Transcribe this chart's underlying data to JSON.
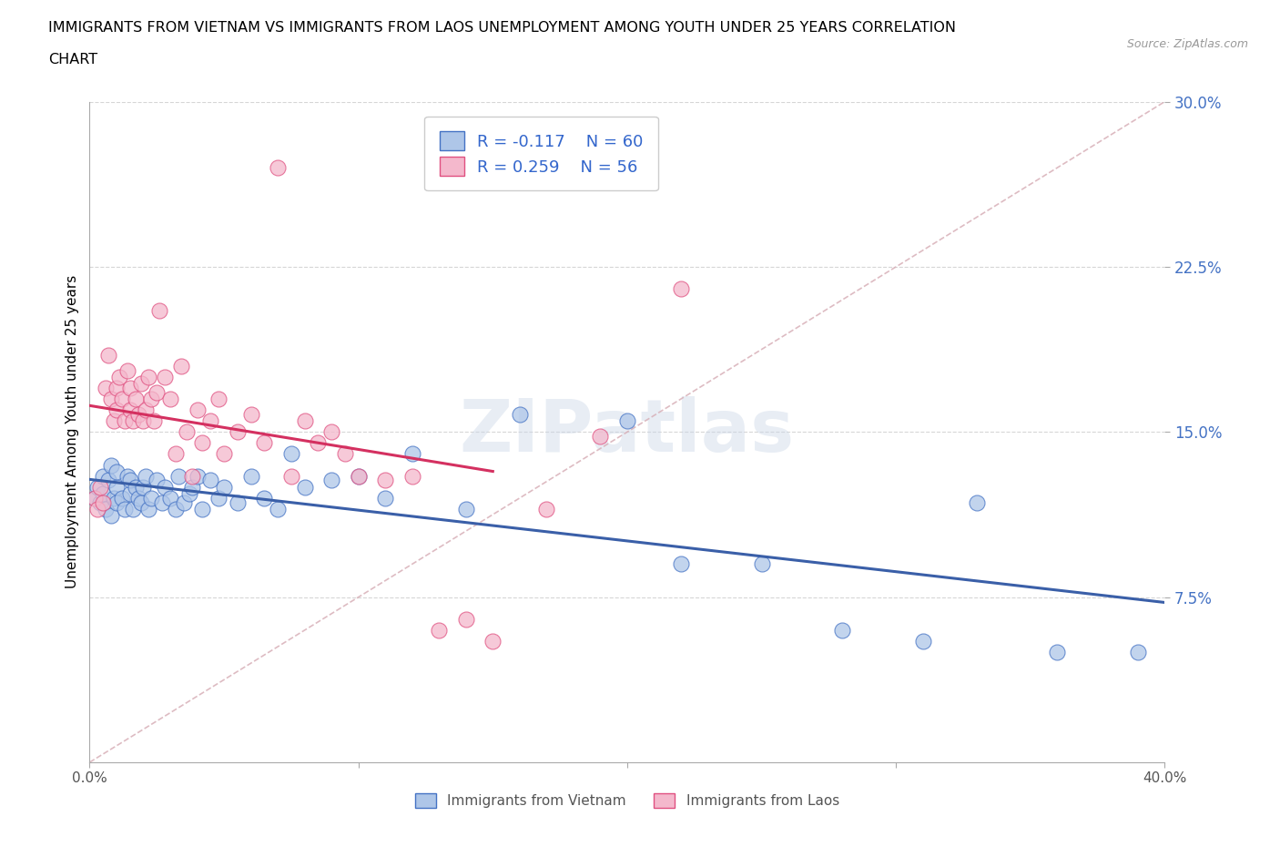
{
  "title_line1": "IMMIGRANTS FROM VIETNAM VS IMMIGRANTS FROM LAOS UNEMPLOYMENT AMONG YOUTH UNDER 25 YEARS CORRELATION",
  "title_line2": "CHART",
  "source": "Source: ZipAtlas.com",
  "ylabel": "Unemployment Among Youth under 25 years",
  "xlim": [
    0,
    0.4
  ],
  "ylim": [
    0,
    0.3
  ],
  "ytick_vals": [
    0.075,
    0.15,
    0.225,
    0.3
  ],
  "ytick_labels": [
    "7.5%",
    "15.0%",
    "22.5%",
    "30.0%"
  ],
  "xtick_vals": [
    0.0,
    0.1,
    0.2,
    0.3,
    0.4
  ],
  "xtick_labels": [
    "0.0%",
    "",
    "",
    "",
    "40.0%"
  ],
  "legend_r1": "R = -0.117",
  "legend_n1": "N = 60",
  "legend_r2": "R = 0.259",
  "legend_n2": "N = 56",
  "color_vietnam_fill": "#aec6e8",
  "color_vietnam_edge": "#4472c4",
  "color_laos_fill": "#f4b8cc",
  "color_laos_edge": "#e05080",
  "color_trend_vietnam": "#3a5fa8",
  "color_trend_laos": "#d43060",
  "color_ref_line": "#d8b0b8",
  "watermark": "ZIPatlas",
  "vietnam_x": [
    0.002,
    0.003,
    0.004,
    0.005,
    0.005,
    0.006,
    0.007,
    0.008,
    0.008,
    0.009,
    0.01,
    0.01,
    0.01,
    0.012,
    0.013,
    0.014,
    0.015,
    0.015,
    0.016,
    0.017,
    0.018,
    0.019,
    0.02,
    0.021,
    0.022,
    0.023,
    0.025,
    0.027,
    0.028,
    0.03,
    0.032,
    0.033,
    0.035,
    0.037,
    0.038,
    0.04,
    0.042,
    0.045,
    0.048,
    0.05,
    0.055,
    0.06,
    0.065,
    0.07,
    0.075,
    0.08,
    0.09,
    0.1,
    0.11,
    0.12,
    0.14,
    0.16,
    0.2,
    0.22,
    0.25,
    0.28,
    0.31,
    0.33,
    0.36,
    0.39
  ],
  "vietnam_y": [
    0.12,
    0.125,
    0.118,
    0.13,
    0.122,
    0.115,
    0.128,
    0.112,
    0.135,
    0.12,
    0.125,
    0.118,
    0.132,
    0.12,
    0.115,
    0.13,
    0.122,
    0.128,
    0.115,
    0.125,
    0.12,
    0.118,
    0.125,
    0.13,
    0.115,
    0.12,
    0.128,
    0.118,
    0.125,
    0.12,
    0.115,
    0.13,
    0.118,
    0.122,
    0.125,
    0.13,
    0.115,
    0.128,
    0.12,
    0.125,
    0.118,
    0.13,
    0.12,
    0.115,
    0.14,
    0.125,
    0.128,
    0.13,
    0.12,
    0.14,
    0.115,
    0.158,
    0.155,
    0.09,
    0.09,
    0.06,
    0.055,
    0.118,
    0.05,
    0.05
  ],
  "laos_x": [
    0.002,
    0.003,
    0.004,
    0.005,
    0.006,
    0.007,
    0.008,
    0.009,
    0.01,
    0.01,
    0.011,
    0.012,
    0.013,
    0.014,
    0.015,
    0.015,
    0.016,
    0.017,
    0.018,
    0.019,
    0.02,
    0.021,
    0.022,
    0.023,
    0.024,
    0.025,
    0.026,
    0.028,
    0.03,
    0.032,
    0.034,
    0.036,
    0.038,
    0.04,
    0.042,
    0.045,
    0.048,
    0.05,
    0.055,
    0.06,
    0.065,
    0.07,
    0.075,
    0.08,
    0.085,
    0.09,
    0.095,
    0.1,
    0.11,
    0.12,
    0.13,
    0.14,
    0.15,
    0.17,
    0.19,
    0.22
  ],
  "laos_y": [
    0.12,
    0.115,
    0.125,
    0.118,
    0.17,
    0.185,
    0.165,
    0.155,
    0.16,
    0.17,
    0.175,
    0.165,
    0.155,
    0.178,
    0.16,
    0.17,
    0.155,
    0.165,
    0.158,
    0.172,
    0.155,
    0.16,
    0.175,
    0.165,
    0.155,
    0.168,
    0.205,
    0.175,
    0.165,
    0.14,
    0.18,
    0.15,
    0.13,
    0.16,
    0.145,
    0.155,
    0.165,
    0.14,
    0.15,
    0.158,
    0.145,
    0.27,
    0.13,
    0.155,
    0.145,
    0.15,
    0.14,
    0.13,
    0.128,
    0.13,
    0.06,
    0.065,
    0.055,
    0.115,
    0.148,
    0.215
  ]
}
